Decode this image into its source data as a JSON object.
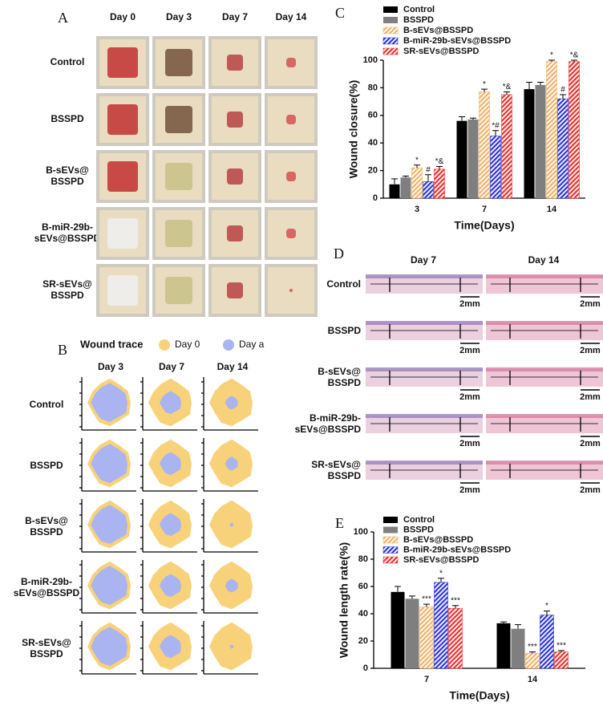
{
  "panel_a": {
    "letter": "A",
    "columns": [
      "Day 0",
      "Day 3",
      "Day 7",
      "Day 14"
    ],
    "rows": [
      [
        "Control"
      ],
      [
        "BSSPD"
      ],
      [
        "B-sEVs@",
        "BSSPD"
      ],
      [
        "B-miR-29b-",
        "sEVs@BSSPD"
      ],
      [
        "SR-sEVs@",
        "BSSPD"
      ]
    ]
  },
  "panel_b": {
    "letter": "B",
    "legend_title": "Wound trace",
    "legend": [
      {
        "name": "Day 0",
        "color": "#f8d27a"
      },
      {
        "name": "Day a",
        "color": "#a9b4f0"
      }
    ],
    "columns": [
      "Day 3",
      "Day 7",
      "Day 14"
    ],
    "rows": [
      [
        "Control"
      ],
      [
        "BSSPD"
      ],
      [
        "B-sEVs@",
        "BSSPD"
      ],
      [
        "B-miR-29b-",
        "sEVs@BSSPD"
      ],
      [
        "SR-sEVs@",
        "BSSPD"
      ]
    ]
  },
  "panel_d": {
    "letter": "D",
    "columns": [
      "Day 7",
      "Day 14"
    ],
    "rows": [
      [
        "Control"
      ],
      [
        "BSSPD"
      ],
      [
        "B-sEVs@",
        "BSSPD"
      ],
      [
        "B-miR-29b-",
        "sEVs@BSSPD"
      ],
      [
        "SR-sEVs@",
        "BSSPD"
      ]
    ],
    "scale_bar": "2mm"
  },
  "chart_data": [
    {
      "type": "bar",
      "panel": "C",
      "x_label": "Time(Days)",
      "y_label": "Wound closure(%)",
      "categories": [
        "3",
        "7",
        "14"
      ],
      "ylim": [
        0,
        100
      ],
      "yticks": [
        0,
        20,
        40,
        60,
        80,
        100
      ],
      "series": [
        {
          "name": "Control",
          "color": "#000000",
          "hatch": false,
          "values": [
            10,
            56,
            79
          ],
          "errors": [
            4,
            3,
            5
          ],
          "labels": [
            null,
            null,
            null
          ]
        },
        {
          "name": "BSSPD",
          "color": "#7f7f7f",
          "hatch": false,
          "values": [
            15,
            57,
            82
          ],
          "errors": [
            1,
            1,
            2
          ],
          "labels": [
            null,
            null,
            null
          ]
        },
        {
          "name": "B-sEVs@BSSPD",
          "color": "#f4b266",
          "hatch": true,
          "values": [
            22,
            77,
            99
          ],
          "errors": [
            2,
            2,
            1
          ],
          "labels": [
            "*",
            "*",
            "*"
          ]
        },
        {
          "name": "B-miR-29b-sEVs@BSSPD",
          "color": "#2b35d8",
          "hatch": true,
          "values": [
            12,
            45,
            72
          ],
          "errors": [
            5,
            4,
            3
          ],
          "labels": [
            "#",
            "*#",
            "#"
          ]
        },
        {
          "name": "SR-sEVs@BSSPD",
          "color": "#e8312f",
          "hatch": true,
          "values": [
            21,
            75,
            99
          ],
          "errors": [
            2,
            2,
            1
          ],
          "labels": [
            "*&",
            "*&",
            "*&"
          ]
        }
      ]
    },
    {
      "type": "bar",
      "panel": "E",
      "x_label": "Time(Days)",
      "y_label": "Wound length rate(%)",
      "categories": [
        "7",
        "14"
      ],
      "ylim": [
        0,
        100
      ],
      "yticks": [
        0,
        20,
        40,
        60,
        80,
        100
      ],
      "series": [
        {
          "name": "Control",
          "color": "#000000",
          "hatch": false,
          "values": [
            56,
            33
          ],
          "errors": [
            4,
            1
          ],
          "labels": [
            null,
            null
          ]
        },
        {
          "name": "BSSPD",
          "color": "#7f7f7f",
          "hatch": false,
          "values": [
            51,
            29
          ],
          "errors": [
            2,
            3
          ],
          "labels": [
            null,
            null
          ]
        },
        {
          "name": "B-sEVs@BSSPD",
          "color": "#f4b266",
          "hatch": true,
          "values": [
            45,
            11
          ],
          "errors": [
            2,
            1
          ],
          "labels": [
            "***",
            "***"
          ]
        },
        {
          "name": "B-miR-29b-sEVs@BSSPD",
          "color": "#2b35d8",
          "hatch": true,
          "values": [
            63,
            39
          ],
          "errors": [
            3,
            3
          ],
          "labels": [
            "*",
            "*"
          ]
        },
        {
          "name": "SR-sEVs@BSSPD",
          "color": "#e8312f",
          "hatch": true,
          "values": [
            44,
            12
          ],
          "errors": [
            2,
            1
          ],
          "labels": [
            "***",
            "***"
          ]
        }
      ]
    }
  ]
}
